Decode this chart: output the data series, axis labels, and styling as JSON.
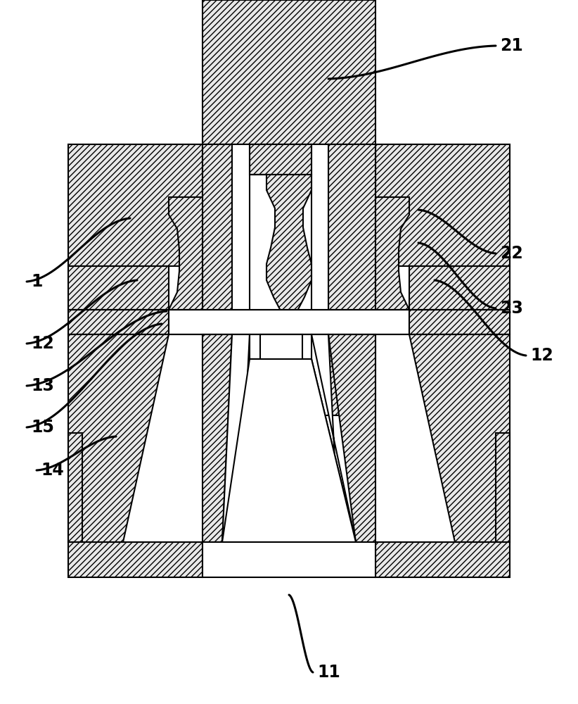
{
  "bg_color": "#ffffff",
  "line_color": "#000000",
  "fill_color": "#e8e8e8",
  "hatch": "////",
  "lw": 1.5,
  "labels": [
    {
      "text": "1",
      "xe": 185,
      "ye": 310,
      "xl": 38,
      "yl": 400
    },
    {
      "text": "11",
      "xe": 411,
      "ye": 845,
      "xl": 445,
      "yl": 955
    },
    {
      "text": "12",
      "xe": 195,
      "ye": 398,
      "xl": 38,
      "yl": 488
    },
    {
      "text": "12",
      "xe": 618,
      "ye": 398,
      "xl": 748,
      "yl": 505
    },
    {
      "text": "13",
      "xe": 237,
      "ye": 442,
      "xl": 38,
      "yl": 548
    },
    {
      "text": "14",
      "xe": 165,
      "ye": 620,
      "xl": 52,
      "yl": 668
    },
    {
      "text": "15",
      "xe": 230,
      "ye": 460,
      "xl": 38,
      "yl": 607
    },
    {
      "text": "21",
      "xe": 467,
      "ye": 112,
      "xl": 705,
      "yl": 65
    },
    {
      "text": "22",
      "xe": 595,
      "ye": 298,
      "xl": 705,
      "yl": 360
    },
    {
      "text": "23",
      "xe": 595,
      "ye": 345,
      "xl": 705,
      "yl": 438
    }
  ]
}
